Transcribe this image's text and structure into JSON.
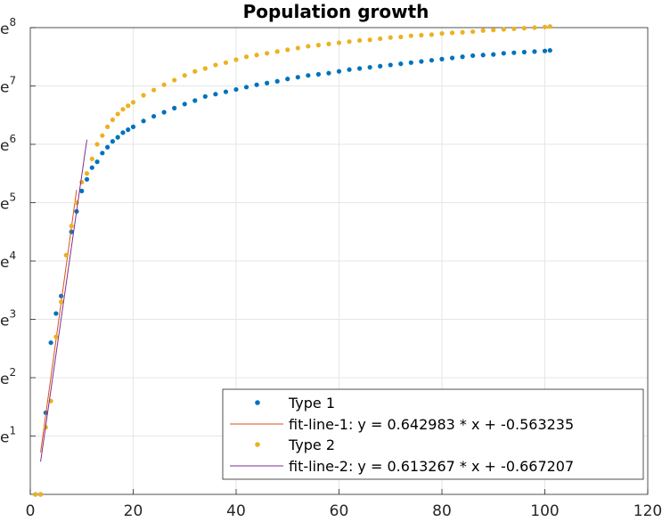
{
  "chart_data": {
    "type": "scatter",
    "title": "Population growth",
    "xlabel": "",
    "ylabel": "",
    "xlim": [
      0,
      120
    ],
    "ylim": [
      0,
      8
    ],
    "y_scale": "log-e",
    "grid": true,
    "legend_position": "bottom-right",
    "x_ticks": [
      "0",
      "20",
      "40",
      "60",
      "80",
      "100",
      "120"
    ],
    "y_ticks": [
      {
        "base": "e",
        "exp": "1"
      },
      {
        "base": "e",
        "exp": "2"
      },
      {
        "base": "e",
        "exp": "3"
      },
      {
        "base": "e",
        "exp": "4"
      },
      {
        "base": "e",
        "exp": "5"
      },
      {
        "base": "e",
        "exp": "6"
      },
      {
        "base": "e",
        "exp": "7"
      },
      {
        "base": "e",
        "exp": "8"
      }
    ],
    "series": [
      {
        "name": "Type 1",
        "kind": "points",
        "color": "#0072BD",
        "x": [
          1,
          2,
          3,
          4,
          5,
          6,
          7,
          8,
          9,
          10,
          11,
          12,
          13,
          14,
          15,
          16,
          17,
          18,
          19,
          20,
          22,
          24,
          26,
          28,
          30,
          32,
          34,
          36,
          38,
          40,
          42,
          44,
          46,
          48,
          50,
          52,
          54,
          56,
          58,
          60,
          62,
          64,
          66,
          68,
          70,
          72,
          74,
          76,
          78,
          80,
          82,
          84,
          86,
          88,
          90,
          92,
          94,
          96,
          98,
          100,
          101
        ],
        "y": [
          0.0,
          0.0,
          1.4,
          2.6,
          3.1,
          3.4,
          4.1,
          4.5,
          4.85,
          5.2,
          5.4,
          5.6,
          5.7,
          5.85,
          5.95,
          6.05,
          6.12,
          6.2,
          6.25,
          6.3,
          6.4,
          6.48,
          6.55,
          6.62,
          6.69,
          6.75,
          6.82,
          6.86,
          6.9,
          6.94,
          6.98,
          7.02,
          7.05,
          7.08,
          7.12,
          7.15,
          7.18,
          7.2,
          7.22,
          7.25,
          7.28,
          7.3,
          7.32,
          7.34,
          7.36,
          7.38,
          7.4,
          7.42,
          7.44,
          7.46,
          7.48,
          7.5,
          7.52,
          7.53,
          7.54,
          7.56,
          7.57,
          7.58,
          7.59,
          7.6,
          7.61
        ]
      },
      {
        "name": "fit-line-1: y = 0.642983 * x + -0.563235",
        "kind": "line",
        "color": "#D95319",
        "x": [
          2,
          9
        ],
        "y": [
          0.72,
          5.22
        ]
      },
      {
        "name": "Type 2",
        "kind": "points",
        "color": "#EDB120",
        "x": [
          1,
          2,
          3,
          4,
          5,
          6,
          7,
          8,
          9,
          10,
          11,
          12,
          13,
          14,
          15,
          16,
          17,
          18,
          19,
          20,
          22,
          24,
          26,
          28,
          30,
          32,
          34,
          36,
          38,
          40,
          42,
          44,
          46,
          48,
          50,
          52,
          54,
          56,
          58,
          60,
          62,
          64,
          66,
          68,
          70,
          72,
          74,
          76,
          78,
          80,
          82,
          84,
          86,
          88,
          90,
          92,
          94,
          96,
          98,
          100,
          101
        ],
        "y": [
          0.0,
          0.0,
          1.15,
          1.6,
          2.7,
          3.3,
          4.1,
          4.6,
          5.0,
          5.35,
          5.5,
          5.75,
          6.0,
          6.15,
          6.3,
          6.42,
          6.52,
          6.6,
          6.66,
          6.72,
          6.84,
          6.93,
          7.02,
          7.1,
          7.18,
          7.25,
          7.3,
          7.36,
          7.4,
          7.45,
          7.5,
          7.53,
          7.56,
          7.59,
          7.62,
          7.65,
          7.68,
          7.7,
          7.72,
          7.74,
          7.76,
          7.78,
          7.79,
          7.81,
          7.83,
          7.84,
          7.86,
          7.87,
          7.88,
          7.9,
          7.91,
          7.92,
          7.93,
          7.95,
          7.96,
          7.97,
          7.98,
          7.99,
          8.0,
          8.01,
          8.02
        ]
      },
      {
        "name": "fit-line-2: y = 0.613267 * x + -0.667207",
        "kind": "line",
        "color": "#7E2F8E",
        "x": [
          2,
          11
        ],
        "y": [
          0.56,
          6.08
        ]
      }
    ]
  }
}
